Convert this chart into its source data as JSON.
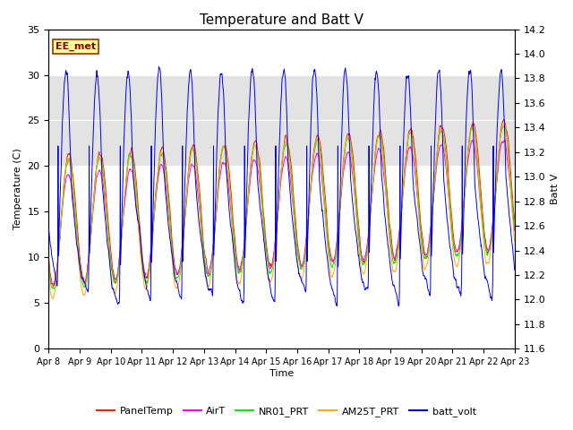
{
  "title": "Temperature and Batt V",
  "xlabel": "Time",
  "ylabel_left": "Temperature (C)",
  "ylabel_right": "Batt V",
  "annotation": "EE_met",
  "ylim_left": [
    0,
    35
  ],
  "ylim_right": [
    11.6,
    14.2
  ],
  "yticks_left": [
    0,
    5,
    10,
    15,
    20,
    25,
    30,
    35
  ],
  "yticks_right": [
    11.6,
    11.8,
    12.0,
    12.2,
    12.4,
    12.6,
    12.8,
    13.0,
    13.2,
    13.4,
    13.6,
    13.8,
    14.0,
    14.2
  ],
  "xtick_labels": [
    "Apr 8",
    "Apr 9",
    "Apr 10",
    "Apr 11",
    "Apr 12",
    "Apr 13",
    "Apr 14",
    "Apr 15",
    "Apr 16",
    "Apr 17",
    "Apr 18",
    "Apr 19",
    "Apr 20",
    "Apr 21",
    "Apr 22",
    "Apr 23"
  ],
  "series_colors": {
    "PanelTemp": "#ff2200",
    "AirT": "#ff00ff",
    "NR01_PRT": "#00ee00",
    "AM25T_PRT": "#ffaa00",
    "batt_volt": "#0000ee"
  },
  "legend_labels": [
    "PanelTemp",
    "AirT",
    "NR01_PRT",
    "AM25T_PRT",
    "batt_volt"
  ],
  "shaded_band": [
    20,
    30
  ],
  "title_fontsize": 11,
  "label_fontsize": 8,
  "tick_fontsize": 8
}
